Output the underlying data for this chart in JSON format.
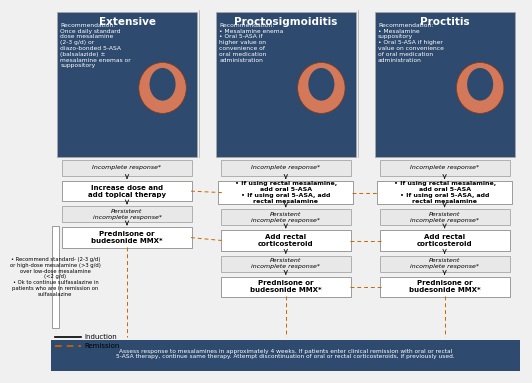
{
  "bg_color": "#f0f0f0",
  "header_bg": "#2e4a6e",
  "header_text_color": "#ffffff",
  "footer_bg": "#2e4a6e",
  "footer_text_color": "#ffffff",
  "box_bg": "#ffffff",
  "box_border": "#777777",
  "italic_box_bg": "#e8e8e8",
  "italic_box_border": "#999999",
  "arrow_color": "#222222",
  "dashed_color": "#cc6600",
  "columns": [
    "Extensive",
    "Proctosigmoiditis",
    "Proctitis"
  ],
  "rec_extensive": "Recommendation:\nOnce daily standard\ndose mesalamine\n(2-3 g/d) or\ndiazo-bonded 5-ASA\n(balsalazide) ±\nmesalamine enemas or\nsuppository",
  "rec_proctosig": "Recommendation:\n• Mesalamine enema\n• Oral 5-ASA if\nhigher value on\nconvenience of\noral medication\nadministration",
  "rec_proctitis": "Recommendation:\n• Mesalamine\nsuppository\n• Oral 5-ASA if higher\nvalue on convenience\nof oral medication\nadministration",
  "box_incomplete": "Incomplete response*",
  "box_persistent": "Persistent\nincomplete response*",
  "box_ext_step1": "Increase dose and\nadd topical therapy",
  "box_ext_step2": "Prednisone or\nbudesonide MMX*",
  "box_ps_step1": "• If using rectal mesalamine,\nadd oral 5-ASA\n• If using oral 5-ASA, add\nrectal mesalamine",
  "box_ps_step2": "Add rectal\ncorticosteroid",
  "box_ps_step3": "Prednisone or\nbudesonide MMX*",
  "box_pr_step1": "• If using rectal mesalamine,\nadd oral 5-ASA\n• If using oral 5-ASA, add\nrectal mesalamine",
  "box_pr_step2": "Add rectal\ncorticosteroid",
  "box_pr_step3": "Prednisone or\nbudesonide MMX*",
  "footnote_box": "• Recommend standard- (2-3 g/d)\nor high-dose mesalamine (>3 g/d)\nover low-dose mesalamine\n(<2 g/d)\n• Ok to continue sulfasalazine in\npatients who are in remission on\nsulfasalazine",
  "legend_induction": "Induction",
  "legend_remission": "Remission",
  "footer_text": "Assess response to mesalamines in approximately 4 weeks. If patients enter clinical remission with oral or rectal\n5-ASA therapy, continue same therapy. Attempt discontinuation of oral or rectal corticosteroids, if previously used."
}
